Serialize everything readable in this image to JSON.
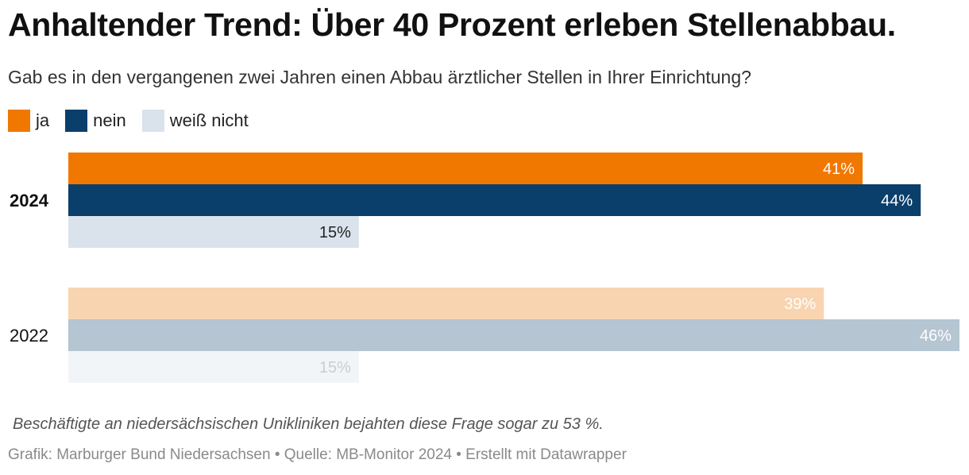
{
  "title": "Anhaltender Trend: Über 40 Prozent erleben Stellenabbau.",
  "subtitle": "Gab es in den vergangenen zwei Jahren einen Abbau ärztlicher Stellen in Ihrer Einrichtung?",
  "legend": [
    {
      "label": "ja",
      "color": "#f07800"
    },
    {
      "label": "nein",
      "color": "#0b3f6b"
    },
    {
      "label": "weiß nicht",
      "color": "#dae3ec"
    }
  ],
  "note": " Beschäftigte an niedersächsischen Unikliniken bejahten diese Frage sogar zu 53 %.",
  "footer": "Grafik: Marburger Bund Niedersachsen • Quelle: MB-Monitor 2024 • Erstellt mit Datawrapper",
  "chart_data": {
    "type": "bar",
    "orientation": "horizontal",
    "unit": "%",
    "xlim": [
      0,
      46
    ],
    "groups": [
      {
        "label": "2024",
        "bold": true,
        "bars": [
          {
            "series": "ja",
            "value": 41,
            "label": "41%",
            "color": "#f07800",
            "text_color": "#ffffff"
          },
          {
            "series": "nein",
            "value": 44,
            "label": "44%",
            "color": "#0b3f6b",
            "text_color": "#ffffff"
          },
          {
            "series": "weiß nicht",
            "value": 15,
            "label": "15%",
            "color": "#dae3ec",
            "text_color": "#222222"
          }
        ]
      },
      {
        "label": "2022",
        "bold": false,
        "bars": [
          {
            "series": "ja",
            "value": 39,
            "label": "39%",
            "color": "#f9d4b0",
            "text_color": "#ffffff"
          },
          {
            "series": "nein",
            "value": 46,
            "label": "46%",
            "color": "#b5c5d2",
            "text_color": "#ffffff"
          },
          {
            "series": "weiß nicht",
            "value": 15,
            "label": "15%",
            "color": "#f2f5f8",
            "text_color": "#cccccc"
          }
        ]
      }
    ]
  }
}
